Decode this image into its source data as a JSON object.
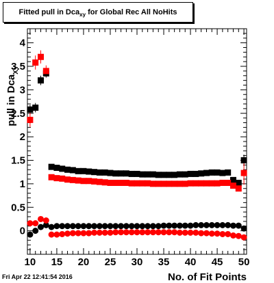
{
  "title_main": "Fitted pull in Dca",
  "title_sub": "xy",
  "title_rest": " for Global Rec All NoHits",
  "timestamp": "Fri Apr 22 12:41:54 2016",
  "chart_data": {
    "type": "scatter",
    "title": "Fitted pull in Dca_xy for Global Rec All NoHits",
    "xlabel": "No. of Fit Points",
    "ylabel_main": "pull in Dca",
    "ylabel_sub": "XY",
    "xlim": [
      9.5,
      50.5
    ],
    "ylim": [
      -0.5,
      4.3
    ],
    "xticks": [
      10,
      15,
      20,
      25,
      30,
      35,
      40,
      45,
      50
    ],
    "yticks": [
      0,
      0.5,
      1,
      1.5,
      2,
      2.5,
      3,
      3.5,
      4
    ],
    "ytick_labels": [
      "0",
      "0.5",
      "1",
      "1.5",
      "2",
      "2.5",
      "3",
      "3.5",
      "4"
    ],
    "x": [
      10,
      11,
      12,
      13,
      14,
      15,
      16,
      17,
      18,
      19,
      20,
      21,
      22,
      23,
      24,
      25,
      26,
      27,
      28,
      29,
      30,
      31,
      32,
      33,
      34,
      35,
      36,
      37,
      38,
      39,
      40,
      41,
      42,
      43,
      44,
      45,
      46,
      47,
      48,
      49,
      50
    ],
    "series": [
      {
        "marker": "square",
        "color": "#000000",
        "values": [
          2.58,
          2.62,
          3.2,
          3.35,
          1.36,
          1.34,
          1.32,
          1.3,
          1.29,
          1.27,
          1.27,
          1.26,
          1.25,
          1.24,
          1.24,
          1.23,
          1.22,
          1.22,
          1.22,
          1.21,
          1.21,
          1.2,
          1.2,
          1.2,
          1.19,
          1.19,
          1.19,
          1.19,
          1.2,
          1.2,
          1.21,
          1.21,
          1.22,
          1.23,
          1.24,
          1.24,
          1.23,
          1.24,
          1.08,
          1.02,
          1.5
        ],
        "errors": [
          0.1,
          0.1,
          0.1,
          0.09,
          0.03,
          0.02,
          0.02,
          0.02,
          0.02,
          0.02,
          0.02,
          0.02,
          0.02,
          0.02,
          0.02,
          0.02,
          0.02,
          0.02,
          0.02,
          0.02,
          0.02,
          0.02,
          0.02,
          0.02,
          0.02,
          0.02,
          0.02,
          0.02,
          0.02,
          0.02,
          0.02,
          0.02,
          0.02,
          0.02,
          0.02,
          0.02,
          0.02,
          0.03,
          0.04,
          0.05,
          0.12
        ]
      },
      {
        "marker": "square",
        "color": "#ff0000",
        "values": [
          2.36,
          3.58,
          3.7,
          3.4,
          1.14,
          1.12,
          1.11,
          1.09,
          1.08,
          1.07,
          1.06,
          1.06,
          1.05,
          1.04,
          1.03,
          1.02,
          1.02,
          1.02,
          1.02,
          1.01,
          1.01,
          1.01,
          1.01,
          1.0,
          1.0,
          1.0,
          1.0,
          1.0,
          1.0,
          1.0,
          1.01,
          1.01,
          1.01,
          1.01,
          1.01,
          1.01,
          1.02,
          1.02,
          0.96,
          0.9,
          1.23
        ],
        "errors": [
          0.15,
          0.15,
          0.14,
          0.12,
          0.03,
          0.02,
          0.02,
          0.02,
          0.02,
          0.02,
          0.02,
          0.02,
          0.02,
          0.02,
          0.02,
          0.02,
          0.02,
          0.02,
          0.02,
          0.02,
          0.02,
          0.02,
          0.02,
          0.02,
          0.02,
          0.02,
          0.02,
          0.02,
          0.02,
          0.02,
          0.02,
          0.02,
          0.02,
          0.02,
          0.02,
          0.02,
          0.02,
          0.03,
          0.04,
          0.05,
          0.25
        ]
      },
      {
        "marker": "circle",
        "color": "#000000",
        "values": [
          -0.08,
          0.0,
          0.08,
          0.12,
          0.08,
          0.1,
          0.1,
          0.1,
          0.1,
          0.1,
          0.1,
          0.1,
          0.1,
          0.1,
          0.1,
          0.1,
          0.1,
          0.1,
          0.1,
          0.1,
          0.1,
          0.1,
          0.1,
          0.1,
          0.1,
          0.11,
          0.11,
          0.11,
          0.11,
          0.11,
          0.11,
          0.12,
          0.12,
          0.12,
          0.12,
          0.12,
          0.12,
          0.12,
          0.11,
          0.11,
          0.05
        ],
        "errors": [
          0.05,
          0.05,
          0.05,
          0.05,
          0.02,
          0.02,
          0.02,
          0.02,
          0.02,
          0.02,
          0.02,
          0.02,
          0.02,
          0.02,
          0.02,
          0.02,
          0.02,
          0.02,
          0.02,
          0.02,
          0.02,
          0.02,
          0.02,
          0.02,
          0.02,
          0.02,
          0.02,
          0.02,
          0.02,
          0.02,
          0.02,
          0.02,
          0.02,
          0.02,
          0.02,
          0.02,
          0.02,
          0.02,
          0.03,
          0.03,
          0.05
        ]
      },
      {
        "marker": "circle",
        "color": "#ff0000",
        "values": [
          0.16,
          0.16,
          0.25,
          0.22,
          -0.08,
          -0.08,
          -0.07,
          -0.06,
          -0.05,
          -0.05,
          -0.05,
          -0.05,
          -0.04,
          -0.04,
          -0.04,
          -0.04,
          -0.03,
          -0.03,
          -0.03,
          -0.03,
          -0.03,
          -0.03,
          -0.03,
          -0.03,
          -0.03,
          -0.03,
          -0.03,
          -0.03,
          -0.04,
          -0.04,
          -0.04,
          -0.04,
          -0.05,
          -0.05,
          -0.06,
          -0.06,
          -0.07,
          -0.07,
          -0.1,
          -0.11,
          -0.14
        ],
        "errors": [
          0.06,
          0.06,
          0.06,
          0.06,
          0.02,
          0.02,
          0.02,
          0.02,
          0.02,
          0.02,
          0.02,
          0.02,
          0.02,
          0.02,
          0.02,
          0.02,
          0.02,
          0.02,
          0.02,
          0.02,
          0.02,
          0.02,
          0.02,
          0.02,
          0.02,
          0.02,
          0.02,
          0.02,
          0.02,
          0.02,
          0.02,
          0.02,
          0.02,
          0.02,
          0.02,
          0.02,
          0.02,
          0.02,
          0.03,
          0.03,
          0.05
        ]
      }
    ],
    "grid": false,
    "legend": "none"
  }
}
